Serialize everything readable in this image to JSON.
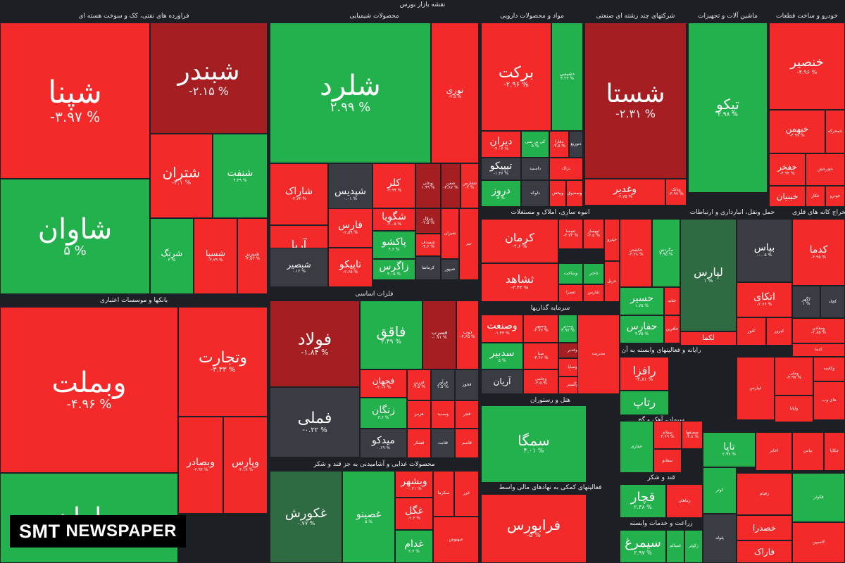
{
  "title": "نقشه بازار بورس",
  "watermark": {
    "brand": "SMT",
    "word": "NEWSPAPER"
  },
  "colors": {
    "bg": "#1c1f24",
    "deep_red": "#a41e22",
    "red": "#ed1c24",
    "bright_red": "#f42a2a",
    "green": "#22b14c",
    "bright_green": "#2bd14e",
    "dark_green": "#2e6b43",
    "neutral": "#3a3c44"
  },
  "sectors": [
    "فراورده های نفتی، کک و سوخت هسته ای",
    "محصولات شیمیایی",
    "مواد و محصولات دارویی",
    "شرکتهای چند رشته ای صنعتی",
    "ماشین آلات و تجهیزات",
    "خودرو و ساخت قطعات",
    "بانکها و موسسات اعتباری",
    "فلزات اساسی",
    "انبوه سازی، املاک و مستغلات",
    "حمل ونقل، انبارداری و ارتباطات",
    "رایانه و فعالیتهای وابسته به آن",
    "استخراج کانه های فلزی",
    "سرمایه گذاریها",
    "محصولات غذایی و آشامیدنی به جز قند و شکر",
    "هتل و رستوران",
    "فعالیتهای کمکی به نهادهای مالی واسط",
    "سیمان، آهک و گچ",
    "قند و شکر",
    "زراعت و خدمات وابسته"
  ],
  "chart_data": {
    "type": "heatmap",
    "title": "نقشه بازار بورس",
    "color_scale": [
      {
        "range": "<= -3%",
        "color": "#ed1c24"
      },
      {
        "range": "-3% to -1.5%",
        "color": "#a41e22"
      },
      {
        "range": "-1.5% to 0%",
        "color": "#3a3c44"
      },
      {
        "range": "0% to 2%",
        "color": "#2e6b43"
      },
      {
        "range": ">= 2%",
        "color": "#22b14c"
      }
    ],
    "cells": [
      {
        "symbol": "شپنا",
        "change": "-۳.۹۷ %"
      },
      {
        "symbol": "شبندر",
        "change": "-۲.۱۵ %"
      },
      {
        "symbol": "شتران",
        "change": "-۳.۱ %"
      },
      {
        "symbol": "شنفت",
        "change": "۴.۴۹ %"
      },
      {
        "symbol": "شاوان",
        "change": "۵ %"
      },
      {
        "symbol": "شرنگ",
        "change": "۳ %"
      },
      {
        "symbol": "شسپا",
        "change": "-۳.۷۹ %"
      },
      {
        "symbol": "شبریز",
        "change": "-۴.۵۳ %"
      },
      {
        "symbol": "شلرد",
        "change": "۲.۹۹ %"
      },
      {
        "symbol": "نوری",
        "change": "-۳.۵ %"
      },
      {
        "symbol": "شاراک",
        "change": "-۳.۷۳ %"
      },
      {
        "symbol": "شپدیس",
        "change": "۰.۰۱ %"
      },
      {
        "symbol": "کلر",
        "change": "-۴.۹۹ %"
      },
      {
        "symbol": "شگویا",
        "change": "-۳.۰۵ %"
      },
      {
        "symbol": "آریا",
        "change": "-۳.۹۵ %"
      },
      {
        "symbol": "فارس",
        "change": "-۲.۵۹ %"
      },
      {
        "symbol": "پاکشو",
        "change": "۴.۶ %"
      },
      {
        "symbol": "زاگرس",
        "change": "۳.۰۵ %"
      },
      {
        "symbol": "شبصیر",
        "change": "۰.۱۲ %"
      },
      {
        "symbol": "تاپیکو",
        "change": "-۲.۶۵ %"
      },
      {
        "symbol": "برکت",
        "change": "-۲.۹۶ %"
      },
      {
        "symbol": "دشیمی",
        "change": "۴.۲۳ %"
      },
      {
        "symbol": "دیران",
        "change": "-۴.۰۶ %"
      },
      {
        "symbol": "تیپیکو",
        "change": "-۱.۳۶ %"
      },
      {
        "symbol": "دروز",
        "change": "۵ %"
      },
      {
        "symbol": "شستا",
        "change": "-۲.۳۱ %"
      },
      {
        "symbol": "وغدیر",
        "change": "-۲.۷۵ %"
      },
      {
        "symbol": "تپکو",
        "change": "۲.۹۸ %"
      },
      {
        "symbol": "خنصیر",
        "change": "-۴.۹۶ %"
      },
      {
        "symbol": "خبهمن",
        "change": "-۴.۹۷ %"
      },
      {
        "symbol": "خفخر",
        "change": "-۴.۹۴ %"
      },
      {
        "symbol": "خبنیان",
        "change": ""
      },
      {
        "symbol": "وبملت",
        "change": "-۴.۹۶ %"
      },
      {
        "symbol": "وتجارت",
        "change": "-۳.۳۳ %"
      },
      {
        "symbol": "وبصادر",
        "change": "-۴.۹۴ %"
      },
      {
        "symbol": "وپارس",
        "change": "-۴.۱۷ %"
      },
      {
        "symbol": "سامان",
        "change": ""
      },
      {
        "symbol": "فولاد",
        "change": "-۱.۸۴ %"
      },
      {
        "symbol": "فملی",
        "change": "-۰.۲۲ %"
      },
      {
        "symbol": "فاقق",
        "change": "۲.۴۹ %"
      },
      {
        "symbol": "فسرب",
        "change": "-۰.۷۱ %"
      },
      {
        "symbol": "ذوب",
        "change": "-۴.۶۵ %"
      },
      {
        "symbol": "فجهان",
        "change": "-۴.۱۷ %"
      },
      {
        "symbol": "زنگان",
        "change": "۳.۶ %"
      },
      {
        "symbol": "میدکو",
        "change": "۰.۱۹ %"
      },
      {
        "symbol": "کرمان",
        "change": "-۲.۶ %"
      },
      {
        "symbol": "ثشاهد",
        "change": "-۳.۴۳ %"
      },
      {
        "symbol": "لپارس",
        "change": "۱ %"
      },
      {
        "symbol": "لکما",
        "change": ""
      },
      {
        "symbol": "حسیر",
        "change": "۱.۷۵ %"
      },
      {
        "symbol": "حفارس",
        "change": "۴.۷۵ %"
      },
      {
        "symbol": "بپاس",
        "change": "-۰.۰۵ %"
      },
      {
        "symbol": "اتکای",
        "change": "-۲.۶۶ %"
      },
      {
        "symbol": "کدما",
        "change": "-۴.۹۵ %"
      },
      {
        "symbol": "وصنعت",
        "change": "-۱.۴۳ %"
      },
      {
        "symbol": "سدبیر",
        "change": "۵ %"
      },
      {
        "symbol": "آریان",
        "change": ""
      },
      {
        "symbol": "سمگا",
        "change": "۴.۰۱ %"
      },
      {
        "symbol": "فرابورس",
        "change": "-۵ %"
      },
      {
        "symbol": "رافزا",
        "change": "-۴.۸۱ %"
      },
      {
        "symbol": "رتاپ",
        "change": ""
      },
      {
        "symbol": "غکورش",
        "change": "۰.۷۷ %"
      },
      {
        "symbol": "غصینو",
        "change": "۵ %"
      },
      {
        "symbol": "وبشهر",
        "change": "-۰.۲۱ %"
      },
      {
        "symbol": "غگل",
        "change": "-۲.۳ %"
      },
      {
        "symbol": "غدام",
        "change": "۲.۷ %"
      },
      {
        "symbol": "قچار",
        "change": "۲.۳۸ %"
      },
      {
        "symbol": "سیمرغ",
        "change": "۲.۹۷ %"
      },
      {
        "symbol": "تاپا",
        "change": "۲.۹۷ %"
      },
      {
        "symbol": "فاراک",
        "change": ""
      },
      {
        "symbol": "خصدرا",
        "change": ""
      }
    ]
  },
  "cells_small": [
    {
      "n": "بوعلی",
      "p": "۱.۹۹ %"
    },
    {
      "n": "شفن",
      "p": "-۳.۸۷ %"
    },
    {
      "n": "شفارس",
      "p": "-۴ %"
    },
    {
      "n": "پتروّل",
      "p": "-۲.۵ %"
    },
    {
      "n": "شصدف",
      "p": "-۴.۶ %"
    },
    {
      "n": "شیران",
      "p": ""
    },
    {
      "n": "کرماشا",
      "p": ""
    },
    {
      "n": "شیپور",
      "p": ""
    },
    {
      "n": "جم",
      "p": ""
    },
    {
      "n": "کی بی سی",
      "p": "۵ %"
    },
    {
      "n": "دفارا",
      "p": "-۴.۵ %"
    },
    {
      "n": "دتوزیع",
      "p": ""
    },
    {
      "n": "داسبید",
      "p": ""
    },
    {
      "n": "دلوکه",
      "p": ""
    },
    {
      "n": "دزاک",
      "p": ""
    },
    {
      "n": "وپخش",
      "p": ""
    },
    {
      "n": "وصندوق",
      "p": ""
    },
    {
      "n": "وبانک",
      "p": "-۴.۹۷ %"
    },
    {
      "n": "خمحرکه",
      "p": ""
    },
    {
      "n": "خچرخش",
      "p": ""
    },
    {
      "n": "خکار",
      "p": ""
    },
    {
      "n": "خودرو",
      "p": ""
    },
    {
      "n": "ثنوسا",
      "p": "-۴.۷۲ %"
    },
    {
      "n": "ثبهساز",
      "p": "-۲.۵ %"
    },
    {
      "n": "وساخت",
      "p": ""
    },
    {
      "n": "ثاختر",
      "p": ""
    },
    {
      "n": "ثعمرا",
      "p": ""
    },
    {
      "n": "ثفارس",
      "p": ""
    },
    {
      "n": "حکشتی",
      "p": "-۴.۲۸ %"
    },
    {
      "n": "مگردش",
      "p": "۴.۹۵ %"
    },
    {
      "n": "حتاید",
      "p": ""
    },
    {
      "n": "حآفرین",
      "p": ""
    },
    {
      "n": "حپترو",
      "p": ""
    },
    {
      "n": "حریل",
      "p": ""
    },
    {
      "n": "کگهر",
      "p": "۱ %"
    },
    {
      "n": "ومعادن",
      "p": "-۲.۸۵ %"
    },
    {
      "n": "کچاد",
      "p": ""
    },
    {
      "n": "کنور",
      "p": ""
    },
    {
      "n": "کپرور",
      "p": ""
    },
    {
      "n": "کدما",
      "p": ""
    },
    {
      "n": "وسپهر",
      "p": "-۲.۶۶ %"
    },
    {
      "n": "ومدیر",
      "p": "۴.۹۷ %"
    },
    {
      "n": "صبا",
      "p": "-۴.۶۶ %"
    },
    {
      "n": "وغدیر",
      "p": ""
    },
    {
      "n": "وساپا",
      "p": ""
    },
    {
      "n": "وجامی",
      "p": "-۴.۵ %"
    },
    {
      "n": "وگستر",
      "p": ""
    },
    {
      "n": "مدیریت",
      "p": ""
    },
    {
      "n": "وملی",
      "p": "-۴.۹۷ %"
    },
    {
      "n": "واپایا",
      "p": ""
    },
    {
      "n": "وکاسه",
      "p": ""
    },
    {
      "n": "های وب",
      "p": ""
    },
    {
      "n": "ایپارس",
      "p": ""
    },
    {
      "n": "فزرین",
      "p": "-۳.۵ %"
    },
    {
      "n": "فرآور",
      "p": "۲.۵ %"
    },
    {
      "n": "فخوز",
      "p": ""
    },
    {
      "n": "هرمز",
      "p": ""
    },
    {
      "n": "وسدید",
      "p": ""
    },
    {
      "n": "فجر",
      "p": ""
    },
    {
      "n": "قشکر",
      "p": ""
    },
    {
      "n": "قثابت",
      "p": ""
    },
    {
      "n": "قاسم",
      "p": ""
    },
    {
      "n": "بپاس",
      "p": ""
    },
    {
      "n": "چکاپا",
      "p": ""
    },
    {
      "n": "اخابر",
      "p": ""
    },
    {
      "n": "حفاری",
      "p": ""
    },
    {
      "n": "سیلام",
      "p": "۴.۶۹ %"
    },
    {
      "n": "سصفها",
      "p": "-۴.۸ %"
    },
    {
      "n": "سفانو",
      "p": ""
    },
    {
      "n": "سکرما",
      "p": ""
    },
    {
      "n": "غزر",
      "p": ""
    },
    {
      "n": "غبهنوش",
      "p": ""
    },
    {
      "n": "غسالم",
      "p": ""
    },
    {
      "n": "زکوثر",
      "p": ""
    },
    {
      "n": "زماهان",
      "p": ""
    },
    {
      "n": "زقیام",
      "p": ""
    },
    {
      "n": "قکوثر",
      "p": ""
    },
    {
      "n": "کوثر",
      "p": ""
    },
    {
      "n": "پلوله",
      "p": ""
    },
    {
      "n": "کاسپین",
      "p": ""
    },
    {
      "n": "نطرین",
      "p": ""
    }
  ]
}
